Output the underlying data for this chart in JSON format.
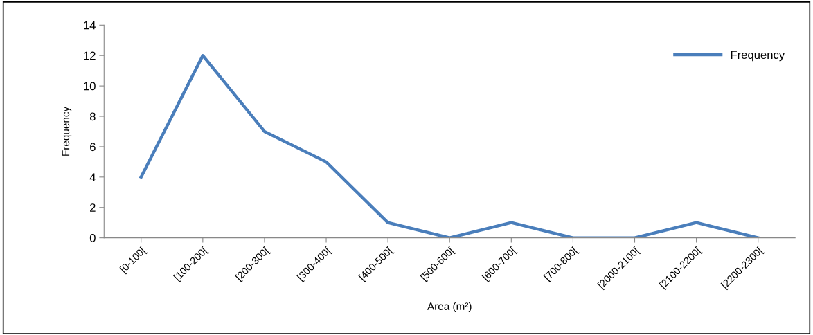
{
  "chart_data": {
    "type": "line",
    "xlabel": "Area (m²)",
    "ylabel": "Frequency",
    "categories": [
      "[0-100[",
      "[100-200[",
      "[200-300[",
      "[300-400[",
      "[400-500[",
      "[500-600[",
      "[600-700[",
      "[700-800[",
      "[2000-2100[",
      "[2100-2200[",
      "[2200-2300["
    ],
    "series": [
      {
        "name": "Frequency",
        "color": "#4a7ebb",
        "values": [
          4,
          12,
          7,
          5,
          1,
          0,
          1,
          0,
          0,
          1,
          0
        ]
      }
    ],
    "ylim": [
      0,
      14
    ],
    "yticks": [
      0,
      2,
      4,
      6,
      8,
      10,
      12,
      14
    ],
    "grid": false,
    "legend": "top right",
    "marker": "none",
    "line_style": "solid"
  }
}
